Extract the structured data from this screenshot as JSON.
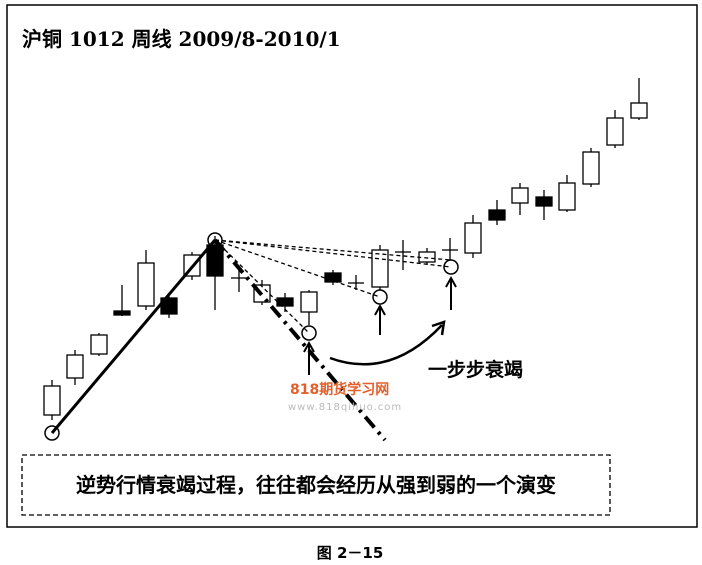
{
  "title": "沪铜 1012  周线  2009/8-2010/1",
  "annotation": "一步步衰竭",
  "note": "逆势行情衰竭过程，往往都会经历从强到弱的一个演变",
  "watermark": {
    "site": "818期货学习网",
    "url": "www.818qihuo.com"
  },
  "caption": "图 2－15"
}
